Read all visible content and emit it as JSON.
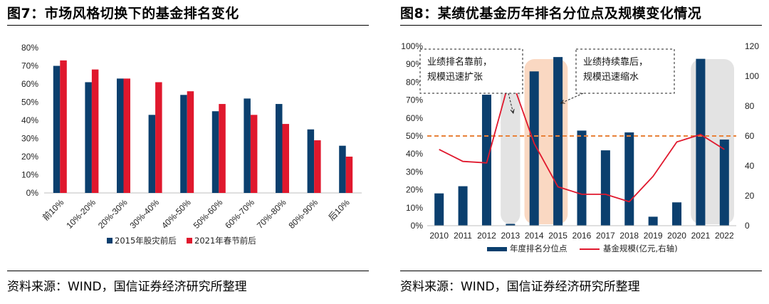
{
  "left": {
    "title": "图7：市场风格切换下的基金排名变化",
    "source": "资料来源：WIND，国信证券经济研究所整理"
  },
  "right": {
    "title": "图8：某绩优基金历年排名分位点及规模变化情况",
    "source": "资料来源：WIND，国信证券经济研究所整理"
  },
  "colors": {
    "navy": "#0b3f6e",
    "red": "#e0182d",
    "orange_dash": "#e8823a",
    "shade_gray": "#d9d9d9",
    "shade_orange": "#f8cbad"
  },
  "chart_data": [
    {
      "type": "bar",
      "categories": [
        "前10%",
        "10%-20%",
        "20%-30%",
        "30%-40%",
        "40%-50%",
        "50%-60%",
        "60%-70%",
        "70%-80%",
        "80%-90%",
        "后10%"
      ],
      "series": [
        {
          "name": "2015年股灾前后",
          "values": [
            70,
            61,
            63,
            43,
            54,
            45,
            52,
            49,
            35,
            26
          ]
        },
        {
          "name": "2021年春节前后",
          "values": [
            73,
            68,
            63,
            61,
            56,
            49,
            43,
            38,
            29,
            20
          ]
        }
      ],
      "y_ticks": [
        "0%",
        "10%",
        "20%",
        "30%",
        "40%",
        "50%",
        "60%",
        "70%",
        "80%"
      ],
      "ylim": [
        0,
        80
      ],
      "legend_position": "bottom"
    },
    {
      "type": "bar+line",
      "x": [
        "2010",
        "2011",
        "2012",
        "2013",
        "2014",
        "2015",
        "2016",
        "2017",
        "2018",
        "2019",
        "2020",
        "2021",
        "2022"
      ],
      "bar_series": {
        "name": "年度排名分位点",
        "values": [
          18,
          22,
          73,
          1,
          86,
          94,
          53,
          42,
          52,
          5,
          13,
          93,
          48
        ],
        "axis": "left"
      },
      "line_series": {
        "name": "基金规模(亿元,右轴)",
        "values": [
          51,
          43,
          42,
          100,
          55,
          26,
          21,
          21,
          16,
          33,
          56,
          61,
          51
        ],
        "axis": "right"
      },
      "reference_line": {
        "value": 50,
        "style": "dashed"
      },
      "y_left_ticks": [
        "0%",
        "10%",
        "20%",
        "30%",
        "40%",
        "50%",
        "60%",
        "70%",
        "80%",
        "90%",
        "100%"
      ],
      "y_right_ticks": [
        "0",
        "20",
        "40",
        "60",
        "80",
        "100",
        "120"
      ],
      "ylim_left": [
        0,
        100
      ],
      "ylim_right": [
        0,
        120
      ],
      "shaded_years": [
        {
          "from": "2013",
          "to": "2013",
          "color": "gray"
        },
        {
          "from": "2014",
          "to": "2015",
          "color": "orange"
        },
        {
          "from": "2021",
          "to": "2022",
          "color": "gray"
        }
      ],
      "annotations": [
        {
          "lines": [
            "业绩排名靠前，",
            "规模迅速扩张"
          ],
          "points_to": "2013"
        },
        {
          "lines": [
            "业绩持续靠后，",
            "规模迅速缩水"
          ],
          "points_to": "2015"
        }
      ],
      "legend_position": "bottom"
    }
  ]
}
